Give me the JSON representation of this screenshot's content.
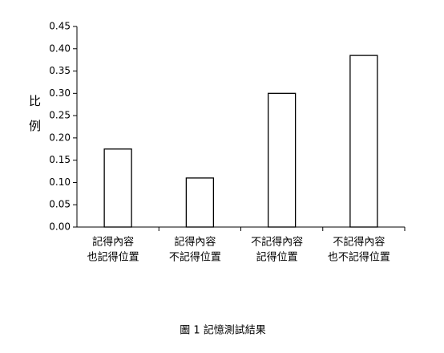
{
  "chart_data": {
    "type": "bar",
    "title": "圖 1 記憶測試結果",
    "y_label": "比例",
    "categories": [
      [
        "記得內容",
        "也記得位置"
      ],
      [
        "記得內容",
        "不記得位置"
      ],
      [
        "不記得內容",
        "記得位置"
      ],
      [
        "不記得內容",
        "也不記得位置"
      ]
    ],
    "values": [
      0.175,
      0.11,
      0.3,
      0.385
    ],
    "color": "#ffffff",
    "edge_color": "#000000",
    "ylim": [
      0,
      0.45
    ],
    "yticks": [
      {
        "value": 0,
        "label": "0.00"
      },
      0.05,
      {
        "value": 0.1,
        "label": "0.10"
      },
      0.15,
      {
        "value": 0.2,
        "label": "0.20"
      },
      0.25,
      {
        "value": 0.3,
        "label": "0.30"
      },
      0.35,
      {
        "value": 0.4,
        "label": "0.40"
      },
      0.45
    ],
    "grid": false
  }
}
